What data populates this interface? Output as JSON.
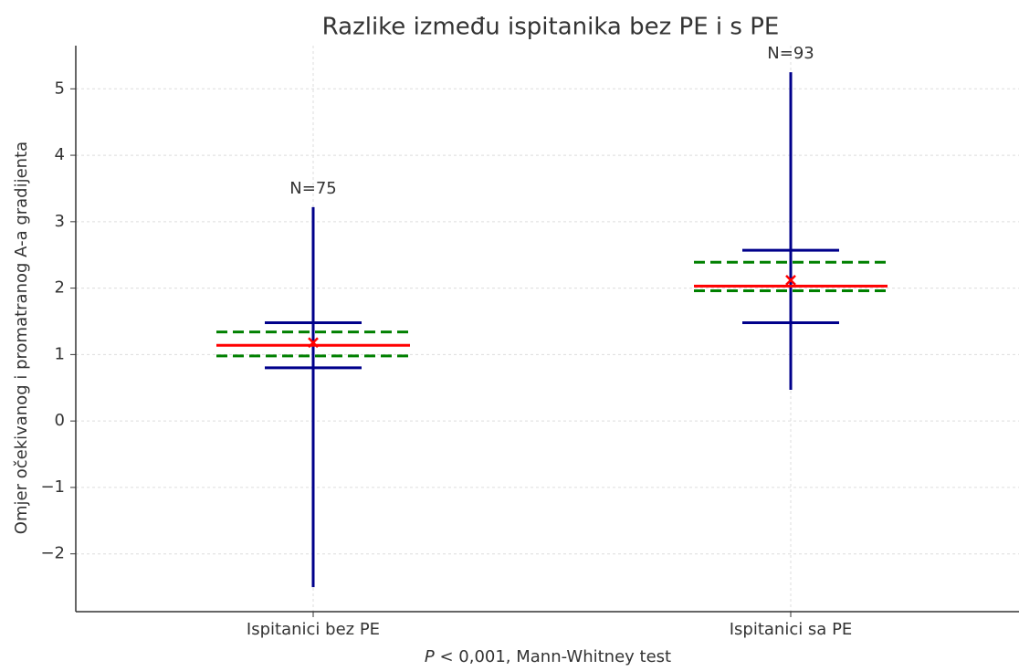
{
  "chart_data": {
    "type": "box",
    "title": "Razlike između ispitanika bez PE i s PE",
    "ylabel": "Omjer očekivanog i promatranog A-a gradijenta",
    "xlabel_italic": "P",
    "xlabel": " < 0,001, Mann-Whitney test",
    "categories": [
      "Ispitanici bez PE",
      "Ispitanici sa PE"
    ],
    "boxes": [
      {
        "whisker_low": -2.5,
        "q1": 0.8,
        "median": 1.14,
        "q3": 1.48,
        "whisker_high": 3.22,
        "mean": 1.18,
        "ci_low": 0.98,
        "ci_high": 1.34,
        "n_label": "N=75"
      },
      {
        "whisker_low": 0.47,
        "q1": 1.48,
        "median": 2.03,
        "q3": 2.57,
        "whisker_high": 5.25,
        "mean": 2.12,
        "ci_low": 1.96,
        "ci_high": 2.39,
        "n_label": "N=93"
      }
    ],
    "whisker_color": "#00008b",
    "median_color": "#ff0000",
    "mean_color": "#ff0000",
    "ci_color": "#008000",
    "ylim": [
      -2.87,
      5.65
    ],
    "yticks": [
      {
        "value": -2,
        "label": "−2"
      },
      {
        "value": -1,
        "label": "−1"
      },
      0,
      1,
      2,
      3,
      4,
      5
    ],
    "grid": true
  }
}
